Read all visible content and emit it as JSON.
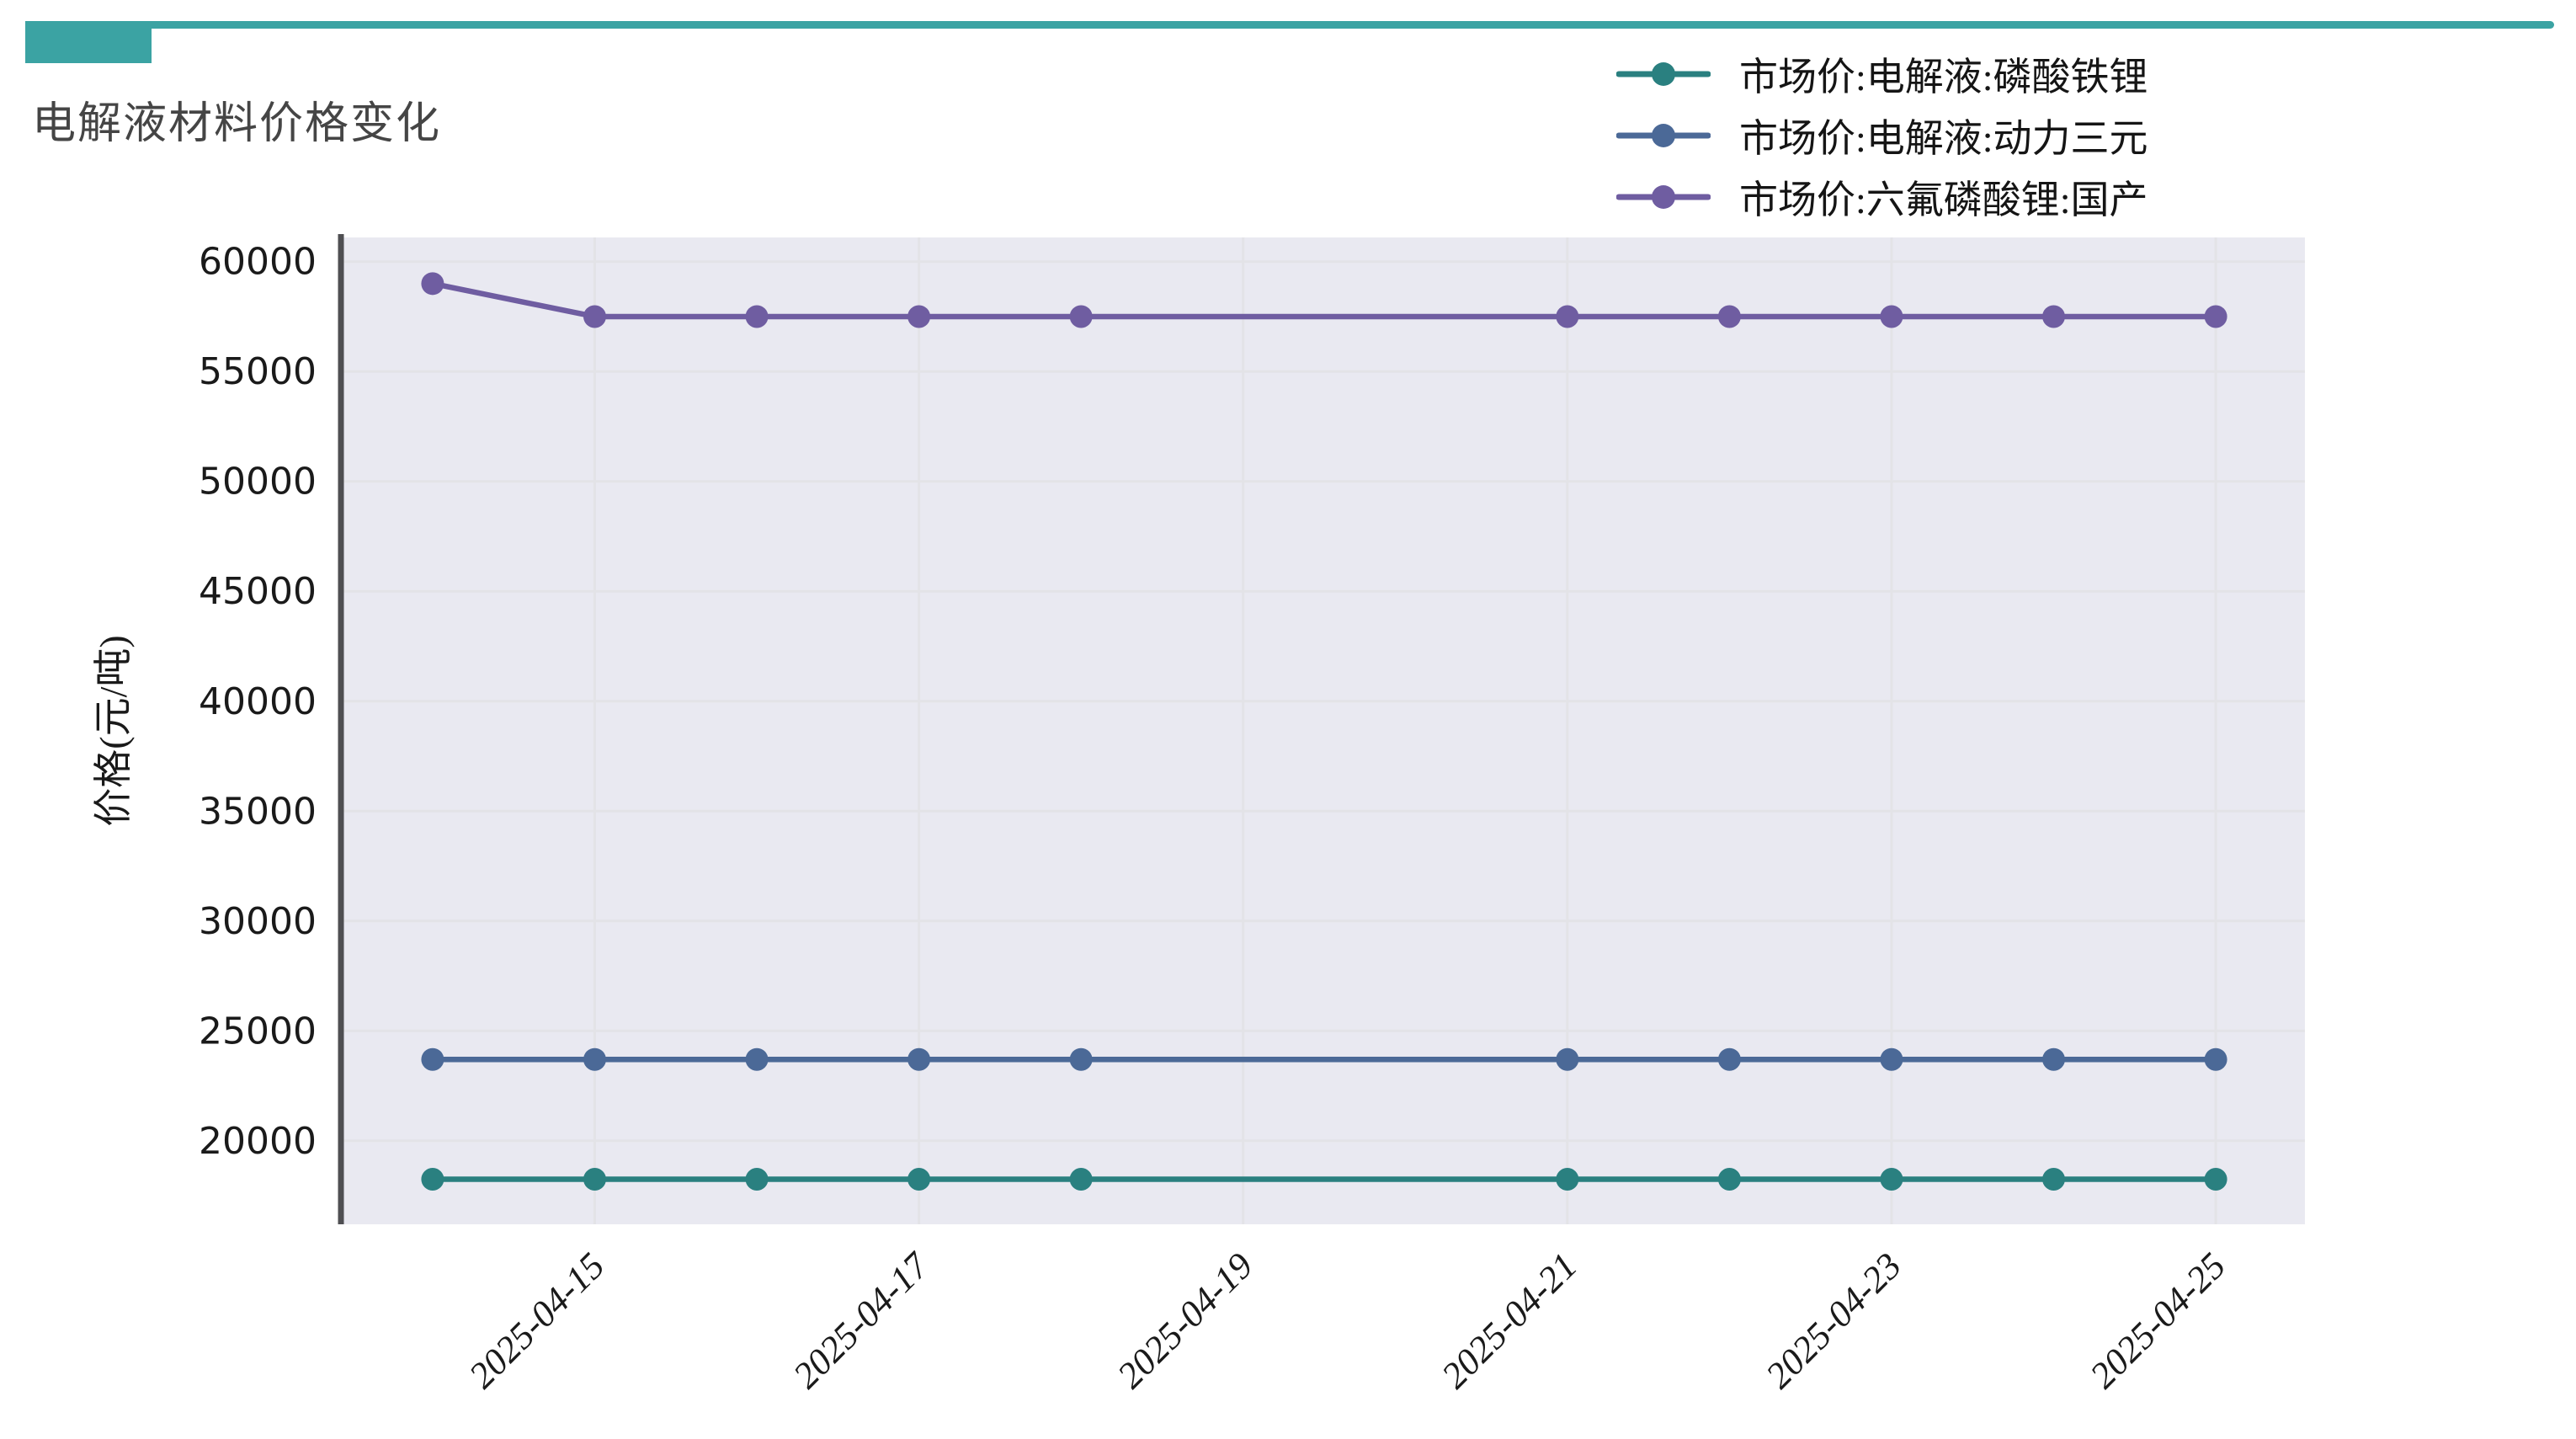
{
  "page": {
    "title": "电解液材料价格变化",
    "accent_color": "#3BA3A3",
    "background": "#FFFFFF"
  },
  "chart_data": {
    "type": "line",
    "title": "电解液材料价格变化",
    "xlabel": "",
    "ylabel": "价格(元/吨)",
    "x": [
      "2025-04-14",
      "2025-04-15",
      "2025-04-16",
      "2025-04-17",
      "2025-04-18",
      "2025-04-21",
      "2025-04-22",
      "2025-04-23",
      "2025-04-24",
      "2025-04-25"
    ],
    "x_tick_labels": [
      "2025-04-15",
      "2025-04-17",
      "2025-04-19",
      "2025-04-21",
      "2025-04-23",
      "2025-04-25"
    ],
    "y_ticks": [
      20000,
      25000,
      30000,
      35000,
      40000,
      45000,
      50000,
      55000,
      60000
    ],
    "ylim": [
      16200,
      61100
    ],
    "grid": true,
    "legend_position": "top-right",
    "plot_bg_color": "#E9E9F1",
    "grid_color": "#E3E3E7",
    "spine_color": "#4F4F52",
    "tick_label_color": "#1A1A1A",
    "series": [
      {
        "name": "市场价:电解液:磷酸铁锂",
        "color": "#2A8080",
        "values": [
          18250,
          18250,
          18250,
          18250,
          18250,
          18250,
          18250,
          18250,
          18250,
          18250
        ]
      },
      {
        "name": "市场价:电解液:动力三元",
        "color": "#4B6997",
        "values": [
          23700,
          23700,
          23700,
          23700,
          23700,
          23700,
          23700,
          23700,
          23700,
          23700
        ]
      },
      {
        "name": "市场价:六氟磷酸锂:国产",
        "color": "#6F5DA1",
        "values": [
          59000,
          57500,
          57500,
          57500,
          57500,
          57500,
          57500,
          57500,
          57500,
          57500
        ]
      }
    ]
  }
}
